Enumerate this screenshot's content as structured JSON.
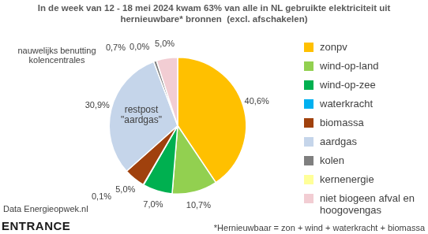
{
  "chart_data": {
    "type": "pie",
    "title": "In de week van 12 - 18 mei 2024 kwam 63% van alle in NL gebruikte elektriciteit uit hernieuwbare* bronnen  (excl. afschakelen)",
    "categories": [
      "zonpv",
      "wind-op-land",
      "wind-op-zee",
      "waterkracht",
      "biomassa",
      "aardgas",
      "kolen",
      "kernenergie",
      "niet biogeen afval en hoogovengas"
    ],
    "values": [
      40.6,
      10.7,
      7.0,
      0.1,
      5.0,
      30.9,
      0.7,
      0.0,
      5.0
    ],
    "value_labels": [
      "40,6%",
      "10,7%",
      "7,0%",
      "0,1%",
      "5,0%",
      "30,9%",
      "0,7%",
      "0,0%",
      "5,0%"
    ],
    "colors": [
      "#ffc000",
      "#92d050",
      "#00b050",
      "#00b0f0",
      "#a0410d",
      "#c5d5ea",
      "#7f7f7f",
      "#ffff99",
      "#f2cdd3"
    ],
    "legend": "right",
    "data_labels": true,
    "annotations": [
      "nauwelijks benutting kolencentrales",
      "restpost \"aardgas\"",
      "Data Energieopwek.nl",
      "ENTRANCE",
      "*Hernieuwbaar = zon + wind + waterkracht + biomassa"
    ]
  }
}
